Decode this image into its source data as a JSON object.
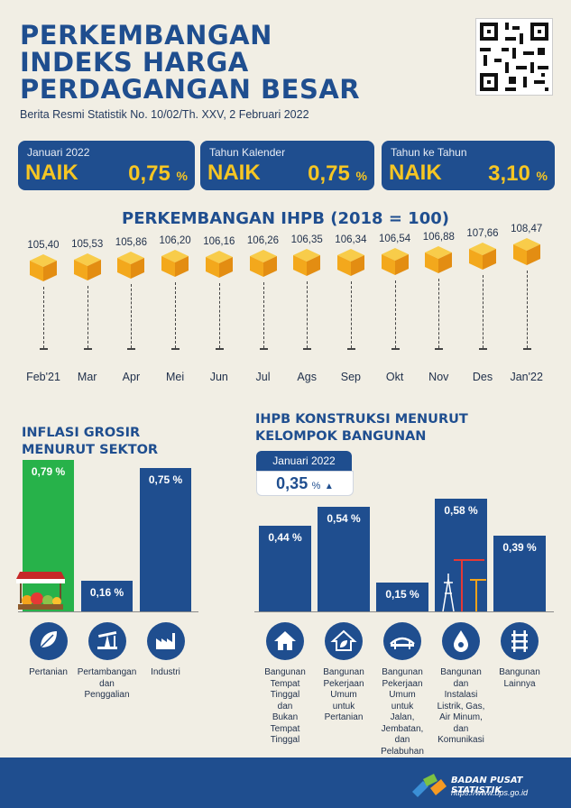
{
  "header": {
    "title_line1": "PERKEMBANGAN",
    "title_line2": "INDEKS HARGA",
    "title_line3": "PERDAGANGAN BESAR",
    "subtitle": "Berita Resmi Statistik No. 10/02/Th. XXV, 2 Februari 2022"
  },
  "cards": [
    {
      "label": "Januari 2022",
      "direction": "NAIK",
      "value": "0,75",
      "unit": "%"
    },
    {
      "label": "Tahun Kalender",
      "direction": "NAIK",
      "value": "0,75",
      "unit": "%"
    },
    {
      "label": "Tahun ke Tahun",
      "direction": "NAIK",
      "value": "3,10",
      "unit": "%"
    }
  ],
  "ihpb": {
    "title": "PERKEMBANGAN IHPB (2018 = 100)",
    "months": [
      "Feb'21",
      "Mar",
      "Apr",
      "Mei",
      "Jun",
      "Jul",
      "Ags",
      "Sep",
      "Okt",
      "Nov",
      "Des",
      "Jan'22"
    ],
    "values": [
      "105,40",
      "105,53",
      "105,86",
      "106,20",
      "106,16",
      "106,26",
      "106,35",
      "106,34",
      "106,54",
      "106,88",
      "107,66",
      "108,47"
    ]
  },
  "sektor": {
    "title_line1": "INFLASI GROSIR",
    "title_line2": "MENURUT SEKTOR",
    "values": [
      0.79,
      0.16,
      0.75
    ],
    "labels": [
      "0,79 %",
      "0,16 %",
      "0,75 %"
    ],
    "captions": [
      "Pertanian",
      "Pertambangan\ndan\nPenggalian",
      "Industri"
    ],
    "icons": [
      "leaf-icon",
      "oil-pump-icon",
      "factory-icon"
    ]
  },
  "konstruksi": {
    "title_line1": "IHPB KONSTRUKSI MENURUT",
    "title_line2": "KELOMPOK BANGUNAN",
    "badge_label": "Januari 2022",
    "badge_value": "0,35",
    "badge_unit": "%",
    "values": [
      0.44,
      0.54,
      0.15,
      0.58,
      0.39
    ],
    "labels": [
      "0,44 %",
      "0,54 %",
      "0,15 %",
      "0,58 %",
      "0,39 %"
    ],
    "captions": [
      "Bangunan\nTempat\nTinggal\ndan\nBukan\nTempat\nTinggal",
      "Bangunan\nPekerjaan\nUmum\nuntuk\nPertanian",
      "Bangunan\nPekerjaan\nUmum\nuntuk\nJalan,\nJembatan,\ndan\nPelabuhan",
      "Bangunan\ndan\nInstalasi\nListrik, Gas,\nAir Minum,\ndan\nKomunikasi",
      "Bangunan\nLainnya"
    ],
    "icons": [
      "house-icon",
      "house-leaf-icon",
      "bridge-icon",
      "water-drop-icon",
      "rail-icon"
    ]
  },
  "footer": {
    "org": "BADAN PUSAT STATISTIK",
    "url": "https://www.bps.go.id"
  },
  "colors": {
    "navy": "#1f4e8f",
    "yellow": "#f6c623",
    "green": "#27b24a",
    "background": "#f1eee4"
  }
}
